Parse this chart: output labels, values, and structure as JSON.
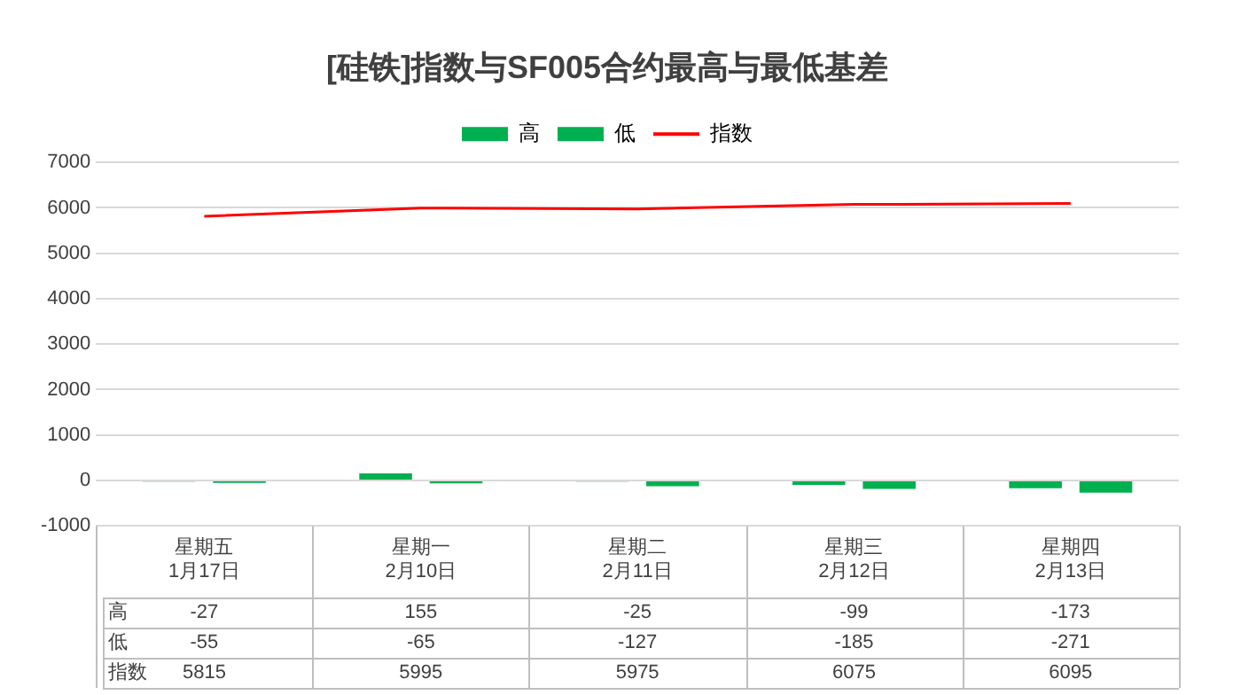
{
  "chart_data": {
    "type": "bar",
    "title": "[硅铁]指数与SF005合约最高与最低基差",
    "categories": [
      "星期五\n1月17日",
      "星期一\n2月10日",
      "星期二\n2月11日",
      "星期三\n2月12日",
      "星期四\n2月13日"
    ],
    "series": [
      {
        "name": "高",
        "color": "#00b050",
        "values": [
          -27,
          155,
          -25,
          -99,
          -173
        ]
      },
      {
        "name": "低",
        "color": "#00b050",
        "values": [
          -55,
          -65,
          -127,
          -185,
          -271
        ]
      },
      {
        "name": "指数",
        "type": "line",
        "color": "#ff0000",
        "values": [
          5815,
          5995,
          5975,
          6075,
          6095
        ]
      }
    ],
    "ylim": [
      -1000,
      7000
    ],
    "yticks": [
      -1000,
      0,
      1000,
      2000,
      3000,
      4000,
      5000,
      6000,
      7000
    ],
    "grid": "y",
    "legend": "top",
    "data_labels": true,
    "marker": "none"
  }
}
